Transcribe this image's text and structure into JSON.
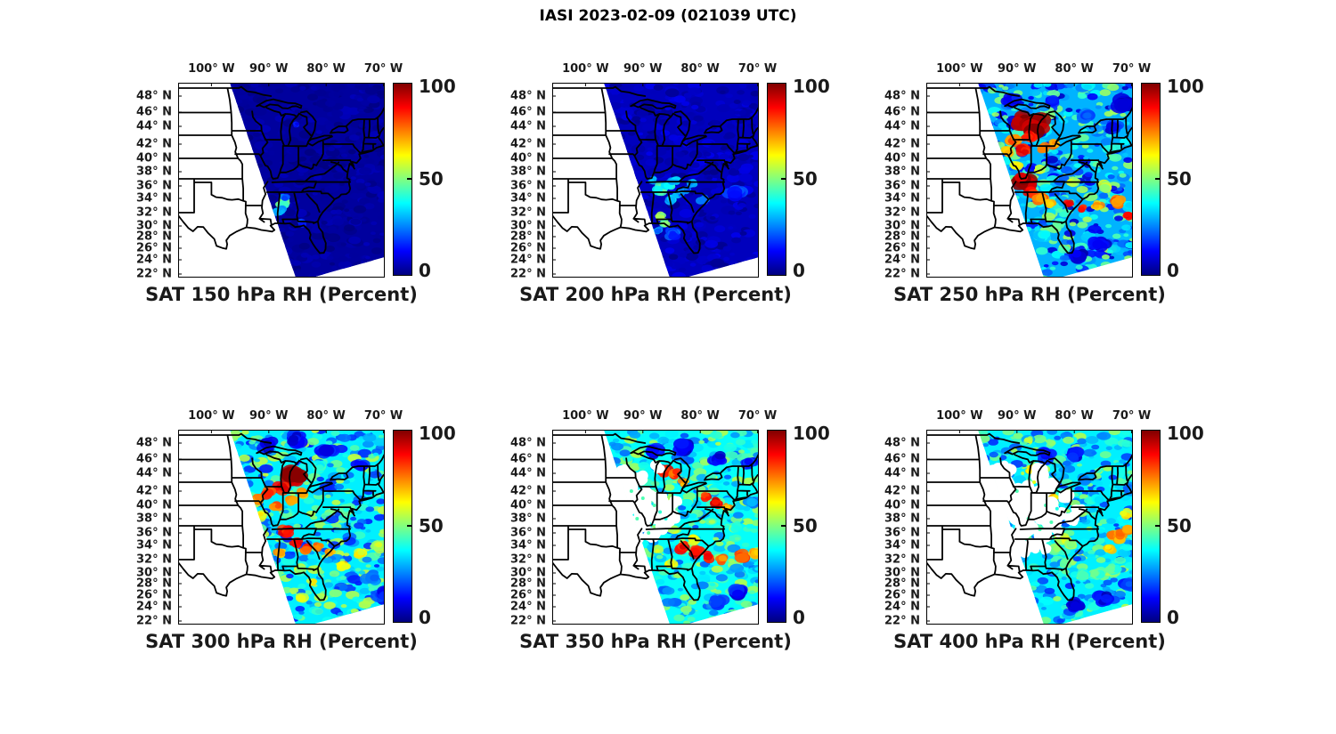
{
  "figure_title": "IASI 2023-02-09 (021039 UTC)",
  "chart_data": {
    "type": "heatmap",
    "title": "IASI 2023-02-09 (021039 UTC)",
    "subplot_grid": [
      2,
      3
    ],
    "x_tick_labels": [
      "100° W",
      "90° W",
      "80° W",
      "70° W"
    ],
    "x_ticks_deg_west": [
      100,
      90,
      80,
      70
    ],
    "y_tick_labels": [
      "48° N",
      "46° N",
      "44° N",
      "42° N",
      "40° N",
      "38° N",
      "36° N",
      "34° N",
      "32° N",
      "30° N",
      "28° N",
      "26° N",
      "24° N",
      "22° N"
    ],
    "y_ticks_deg_north": [
      48,
      46,
      44,
      42,
      40,
      38,
      36,
      34,
      32,
      30,
      28,
      26,
      24,
      22
    ],
    "colorbar": {
      "tick_labels": [
        "0",
        "50",
        "100"
      ],
      "ticks": [
        0,
        50,
        100
      ],
      "range": [
        0,
        100
      ],
      "colormap": "jet"
    },
    "legend_position": "right-of-each-panel",
    "grid": false,
    "panels": [
      {
        "title": "SAT 150 hPa RH (Percent)",
        "level_hPa": 150,
        "background_rh": 3,
        "noise_amp": 3,
        "hotspots": [
          [
            -87.6,
            33.3,
            45,
            6
          ],
          [
            -88.1,
            32.2,
            32,
            5
          ],
          [
            -87.0,
            34.2,
            22,
            4
          ],
          [
            -85.2,
            44.2,
            14,
            3
          ],
          [
            -84.0,
            30.5,
            15,
            4
          ]
        ],
        "gaps": [],
        "dots": []
      },
      {
        "title": "SAT 200 hPa RH (Percent)",
        "level_hPa": 200,
        "background_rh": 6,
        "noise_amp": 5,
        "hotspots": [
          [
            -86.8,
            35.6,
            42,
            6
          ],
          [
            -85.6,
            36.2,
            36,
            5
          ],
          [
            -84.4,
            36.8,
            30,
            5
          ],
          [
            -86.8,
            31.4,
            55,
            4
          ],
          [
            -86.2,
            30.6,
            48,
            4
          ],
          [
            -85.0,
            33.8,
            30,
            5
          ],
          [
            -83.8,
            34.6,
            26,
            5
          ],
          [
            -81.6,
            36.4,
            30,
            4
          ],
          [
            -87.4,
            29.2,
            25,
            4
          ],
          [
            -84.8,
            28.6,
            20,
            6
          ],
          [
            -79.4,
            33.8,
            22,
            5
          ],
          [
            -74.0,
            35.0,
            16,
            8
          ],
          [
            -88.3,
            36.8,
            30,
            4
          ],
          [
            -82.5,
            35.5,
            22,
            4
          ]
        ],
        "gaps": [],
        "dots": []
      },
      {
        "title": "SAT 250 hPa RH (Percent)",
        "level_hPa": 250,
        "background_rh": 30,
        "noise_amp": 24,
        "hotspots": [
          [
            -89.0,
            44.8,
            97,
            8
          ],
          [
            -86.6,
            44.2,
            97,
            11
          ],
          [
            -88.0,
            42.8,
            86,
            6
          ],
          [
            -90.4,
            42.4,
            76,
            6
          ],
          [
            -91.6,
            41.0,
            70,
            5
          ],
          [
            -88.8,
            41.2,
            88,
            6
          ],
          [
            -85.6,
            41.6,
            76,
            5
          ],
          [
            -83.6,
            42.0,
            72,
            5
          ],
          [
            -88.6,
            36.6,
            96,
            9
          ],
          [
            -87.6,
            35.2,
            86,
            6
          ],
          [
            -85.8,
            34.0,
            76,
            6
          ],
          [
            -84.0,
            33.2,
            70,
            5
          ],
          [
            -81.0,
            33.2,
            90,
            4
          ],
          [
            -78.6,
            32.6,
            88,
            4
          ],
          [
            -76.0,
            33.0,
            72,
            5
          ],
          [
            -72.5,
            33.5,
            76,
            6
          ],
          [
            -70.5,
            31.5,
            86,
            5
          ],
          [
            -74.5,
            36.0,
            55,
            6
          ],
          [
            -80.0,
            36.5,
            55,
            5
          ],
          [
            -71.0,
            47.0,
            8,
            9
          ],
          [
            -73.0,
            44.0,
            15,
            7
          ],
          [
            -75.5,
            27.0,
            10,
            8
          ],
          [
            -79.0,
            24.5,
            8,
            7
          ],
          [
            -91.0,
            47.5,
            14,
            7
          ],
          [
            -84.0,
            47.5,
            16,
            6
          ],
          [
            -78.0,
            45.5,
            22,
            7
          ],
          [
            -90.0,
            39.0,
            60,
            5
          ],
          [
            -86.0,
            38.5,
            55,
            5
          ],
          [
            -82.5,
            30.5,
            45,
            5
          ],
          [
            -85.5,
            28.0,
            35,
            6
          ]
        ],
        "gaps": [],
        "dots": []
      },
      {
        "title": "SAT 300 hPa RH (Percent)",
        "level_hPa": 300,
        "background_rh": 36,
        "noise_amp": 22,
        "hotspots": [
          [
            -85.8,
            43.6,
            95,
            10
          ],
          [
            -87.6,
            42.4,
            86,
            6
          ],
          [
            -90.0,
            41.8,
            80,
            6
          ],
          [
            -92.0,
            41.0,
            72,
            5
          ],
          [
            -88.6,
            40.0,
            76,
            5
          ],
          [
            -86.0,
            40.6,
            70,
            5
          ],
          [
            -84.0,
            41.6,
            72,
            5
          ],
          [
            -87.0,
            36.2,
            86,
            6
          ],
          [
            -85.2,
            34.4,
            86,
            5
          ],
          [
            -83.4,
            33.4,
            80,
            5
          ],
          [
            -81.4,
            33.8,
            76,
            4
          ],
          [
            -79.2,
            33.0,
            70,
            4
          ],
          [
            -82.4,
            28.4,
            60,
            4
          ],
          [
            -84.0,
            25.6,
            58,
            5
          ],
          [
            -77.0,
            31.0,
            65,
            5
          ],
          [
            -74.0,
            33.0,
            60,
            5
          ],
          [
            -71.0,
            34.0,
            56,
            6
          ],
          [
            -90.0,
            47.8,
            10,
            8
          ],
          [
            -85.0,
            48.5,
            12,
            8
          ],
          [
            -80.0,
            47.0,
            12,
            8
          ],
          [
            -74.0,
            45.0,
            16,
            7
          ],
          [
            -70.0,
            26.0,
            15,
            8
          ],
          [
            -72.0,
            29.0,
            25,
            7
          ],
          [
            -76.5,
            39.5,
            45,
            6
          ],
          [
            -81.0,
            45.0,
            40,
            6
          ],
          [
            -88.0,
            33.0,
            70,
            5
          ],
          [
            -91.5,
            38.5,
            60,
            5
          ],
          [
            -84.5,
            30.5,
            55,
            5
          ]
        ],
        "gaps": [],
        "dots": []
      },
      {
        "title": "SAT 350 hPa RH (Percent)",
        "level_hPa": 350,
        "background_rh": 38,
        "noise_amp": 18,
        "hotspots": [
          [
            -86.4,
            44.4,
            86,
            6
          ],
          [
            -84.6,
            44.0,
            80,
            5
          ],
          [
            -82.8,
            43.0,
            70,
            4
          ],
          [
            -79.0,
            41.2,
            86,
            5
          ],
          [
            -77.2,
            40.4,
            88,
            5
          ],
          [
            -75.4,
            39.8,
            72,
            4
          ],
          [
            -83.0,
            33.8,
            88,
            6
          ],
          [
            -80.8,
            33.0,
            90,
            6
          ],
          [
            -78.6,
            32.4,
            86,
            5
          ],
          [
            -76.4,
            32.0,
            76,
            5
          ],
          [
            -73.0,
            32.5,
            78,
            6
          ],
          [
            -70.5,
            33.0,
            70,
            5
          ],
          [
            -84.6,
            36.6,
            55,
            5
          ],
          [
            -81.0,
            35.0,
            60,
            5
          ],
          [
            -88.0,
            47.0,
            12,
            8
          ],
          [
            -83.0,
            47.5,
            10,
            8
          ],
          [
            -77.0,
            46.0,
            12,
            7
          ],
          [
            -71.5,
            45.5,
            15,
            7
          ],
          [
            -73.5,
            26.5,
            12,
            8
          ],
          [
            -77.0,
            25.0,
            15,
            7
          ],
          [
            -71.0,
            40.5,
            25,
            6
          ],
          [
            -74.0,
            37.0,
            45,
            5
          ],
          [
            -85.0,
            31.5,
            60,
            5
          ],
          [
            -87.5,
            33.5,
            55,
            4
          ]
        ],
        "gaps": [
          [
            -93.5,
            42.5,
            13
          ],
          [
            -91.5,
            40.5,
            12
          ],
          [
            -89.5,
            39.0,
            10
          ],
          [
            -92.5,
            37.5,
            10
          ],
          [
            -88.0,
            38.5,
            9
          ],
          [
            -86.2,
            39.8,
            8
          ],
          [
            -90.5,
            43.5,
            8
          ],
          [
            -87.5,
            44.8,
            6
          ],
          [
            -94.0,
            39.5,
            10
          ],
          [
            -92.0,
            35.5,
            9
          ],
          [
            -89.5,
            41.5,
            8
          ],
          [
            -85.0,
            38.0,
            7
          ],
          [
            -87.0,
            41.0,
            7
          ],
          [
            -84.5,
            40.5,
            6
          ],
          [
            -88.5,
            35.5,
            7
          ],
          [
            -86.5,
            37.0,
            7
          ],
          [
            -90.5,
            37.0,
            8
          ],
          [
            -93.0,
            44.0,
            8
          ]
        ],
        "dots": [
          [
            -90.0,
            41.0,
            45,
            2
          ],
          [
            -88.0,
            40.0,
            45,
            2
          ],
          [
            -91.0,
            38.0,
            45,
            2
          ],
          [
            -86.0,
            38.0,
            40,
            2
          ],
          [
            -89.0,
            36.0,
            45,
            2
          ],
          [
            -87.0,
            39.0,
            42,
            2
          ],
          [
            -92.0,
            42.0,
            45,
            2
          ]
        ]
      },
      {
        "title": "SAT 400 hPa RH (Percent)",
        "level_hPa": 400,
        "background_rh": 36,
        "noise_amp": 20,
        "hotspots": [
          [
            -87.6,
            44.6,
            65,
            4
          ],
          [
            -85.0,
            43.0,
            60,
            4
          ],
          [
            -83.6,
            41.2,
            65,
            4
          ],
          [
            -88.0,
            48.4,
            55,
            4
          ],
          [
            -84.0,
            48.0,
            50,
            4
          ],
          [
            -82.0,
            35.2,
            55,
            6
          ],
          [
            -83.4,
            33.4,
            52,
            5
          ],
          [
            -80.6,
            34.0,
            50,
            5
          ],
          [
            -72.5,
            35.5,
            72,
            7
          ],
          [
            -70.5,
            36.5,
            70,
            6
          ],
          [
            -74.0,
            33.5,
            65,
            5
          ],
          [
            -71.0,
            38.8,
            60,
            5
          ],
          [
            -76.0,
            30.0,
            45,
            6
          ],
          [
            -79.8,
            24.4,
            8,
            7
          ],
          [
            -75.0,
            25.5,
            10,
            7
          ],
          [
            -85.0,
            46.5,
            15,
            8
          ],
          [
            -80.0,
            46.5,
            12,
            7
          ],
          [
            -78.0,
            43.5,
            30,
            6
          ],
          [
            -70.0,
            42.0,
            25,
            6
          ],
          [
            -76.0,
            41.0,
            35,
            5
          ],
          [
            -73.5,
            30.5,
            45,
            6
          ],
          [
            -70.5,
            28.0,
            20,
            7
          ],
          [
            -81.5,
            31.5,
            45,
            5
          ],
          [
            -78.5,
            29.5,
            40,
            6
          ]
        ],
        "gaps": [
          [
            -93.5,
            42.5,
            14
          ],
          [
            -91.5,
            40.0,
            13
          ],
          [
            -89.5,
            38.0,
            12
          ],
          [
            -87.5,
            39.5,
            11
          ],
          [
            -85.5,
            38.5,
            10
          ],
          [
            -88.5,
            42.0,
            10
          ],
          [
            -86.5,
            41.5,
            9
          ],
          [
            -84.5,
            39.5,
            9
          ],
          [
            -92.5,
            36.0,
            10
          ],
          [
            -90.5,
            34.5,
            9
          ],
          [
            -88.5,
            36.5,
            9
          ],
          [
            -84.5,
            42.5,
            8
          ],
          [
            -86.0,
            44.0,
            8
          ],
          [
            -83.5,
            37.5,
            8
          ],
          [
            -85.5,
            35.5,
            8
          ],
          [
            -82.5,
            39.0,
            7
          ],
          [
            -81.5,
            41.0,
            7
          ],
          [
            -94.0,
            44.0,
            9
          ],
          [
            -92.0,
            44.5,
            8
          ],
          [
            -87.0,
            34.0,
            7
          ],
          [
            -89.0,
            33.0,
            7
          ],
          [
            -83.0,
            36.3,
            6
          ],
          [
            -84.8,
            33.5,
            6
          ],
          [
            -80.5,
            38.0,
            6
          ],
          [
            -79.5,
            39.5,
            6
          ]
        ],
        "dots": [
          [
            -90.0,
            42.0,
            45,
            2
          ],
          [
            -88.0,
            38.0,
            45,
            2
          ],
          [
            -86.0,
            36.5,
            45,
            2
          ],
          [
            -84.0,
            37.5,
            45,
            2
          ],
          [
            -91.0,
            35.5,
            45,
            2
          ],
          [
            -87.0,
            43.0,
            60,
            2
          ],
          [
            -89.0,
            44.0,
            55,
            2
          ],
          [
            -85.0,
            40.0,
            45,
            2
          ],
          [
            -83.0,
            39.5,
            40,
            2
          ]
        ]
      }
    ]
  }
}
